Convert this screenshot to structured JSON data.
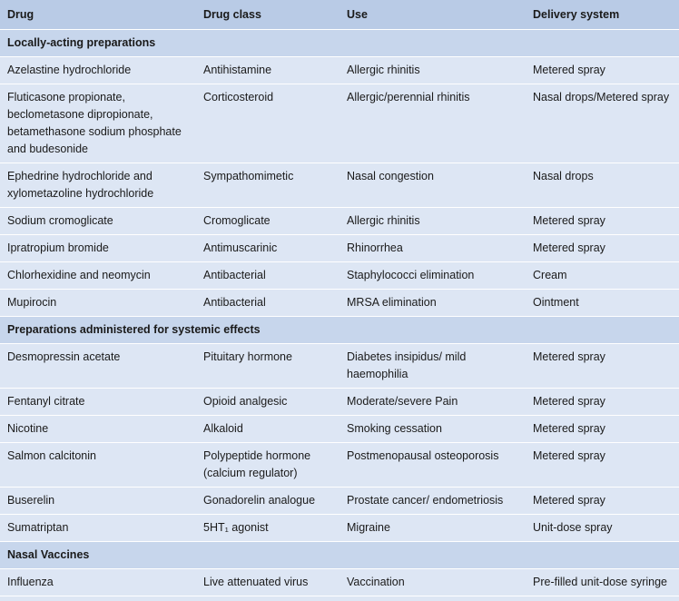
{
  "headers": [
    "Drug",
    "Drug class",
    "Use",
    "Delivery system"
  ],
  "sections": [
    {
      "title": "Locally-acting preparations",
      "rows": [
        [
          "Azelastine hydrochloride",
          "Antihistamine",
          "Allergic rhinitis",
          "Metered spray"
        ],
        [
          "Fluticasone propionate, beclometasone dipropionate, betamethasone sodium phosphate and budesonide",
          "Corticosteroid",
          "Allergic/perennial rhinitis",
          "Nasal drops/Metered spray"
        ],
        [
          "Ephedrine hydrochloride and xylometazoline hydrochloride",
          "Sympathomimetic",
          "Nasal congestion",
          "Nasal drops"
        ],
        [
          "Sodium cromoglicate",
          "Cromoglicate",
          "Allergic rhinitis",
          "Metered spray"
        ],
        [
          "Ipratropium bromide",
          "Antimuscarinic",
          "Rhinorrhea",
          "Metered spray"
        ],
        [
          "Chlorhexidine and neomycin",
          "Antibacterial",
          "Staphylococci elimination",
          "Cream"
        ],
        [
          "Mupirocin",
          "Antibacterial",
          "MRSA elimination",
          "Ointment"
        ]
      ]
    },
    {
      "title": "Preparations administered for systemic effects",
      "rows": [
        [
          "Desmopressin acetate",
          "Pituitary hormone",
          "Diabetes insipidus/ mild haemophilia",
          "Metered spray"
        ],
        [
          "Fentanyl citrate",
          "Opioid analgesic",
          "Moderate/severe Pain",
          "Metered spray"
        ],
        [
          "Nicotine",
          "Alkaloid",
          "Smoking cessation",
          "Metered spray"
        ],
        [
          "Salmon calcitonin",
          "Polypeptide hormone (calcium regulator)",
          "Postmenopausal osteoporosis",
          "Metered spray"
        ],
        [
          "Buserelin",
          "Gonadorelin analogue",
          "Prostate cancer/ endometriosis",
          "Metered spray"
        ],
        [
          "Sumatriptan",
          "5HT₁ agonist",
          "Migraine",
          "Unit-dose spray"
        ]
      ]
    },
    {
      "title": "Nasal Vaccines",
      "rows": [
        [
          "Influenza",
          "Live attenuated virus",
          "Vaccination",
          "Pre-filled unit-dose syringe"
        ]
      ]
    }
  ]
}
